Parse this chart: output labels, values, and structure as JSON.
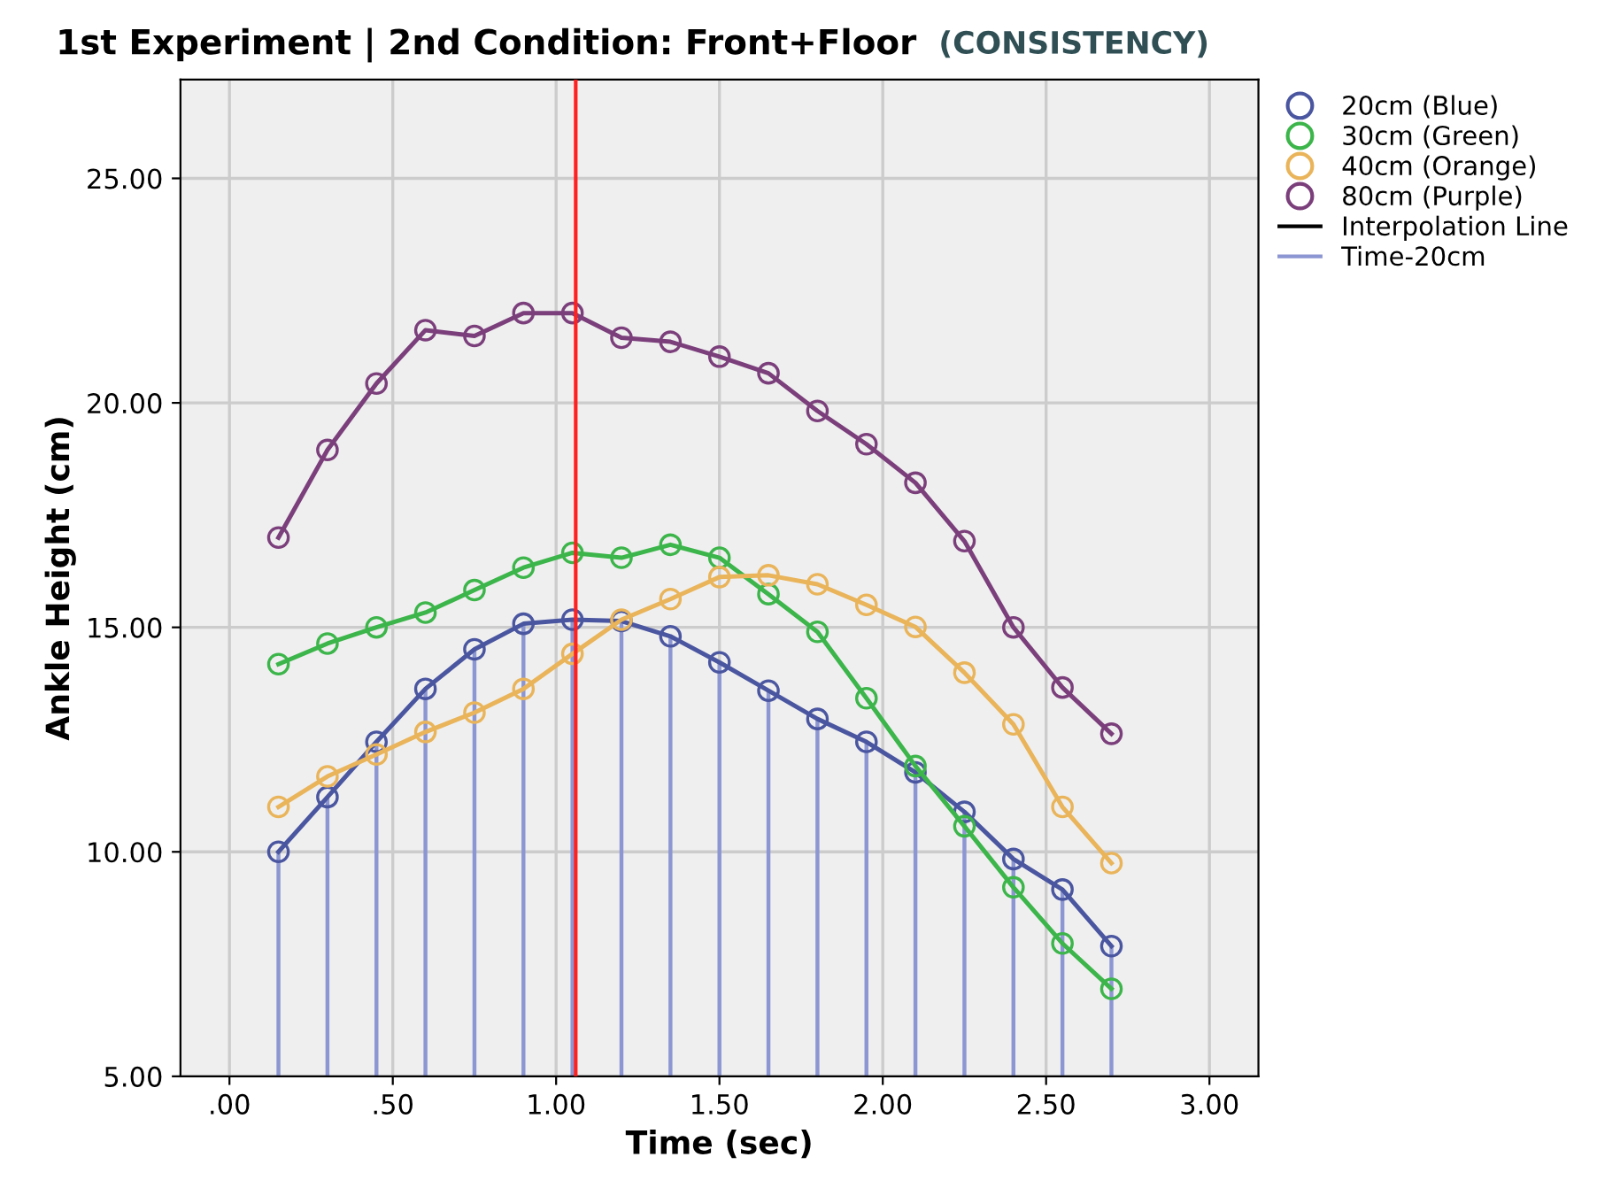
{
  "chart_data": {
    "type": "line",
    "title": "1st Experiment | 2nd Condition: Front+Floor",
    "subtitle": "(CONSISTENCY)",
    "xlabel": "Time (sec)",
    "ylabel": "Ankle Height (cm)",
    "x": [
      0.15,
      0.3,
      0.45,
      0.6,
      0.75,
      0.9,
      1.05,
      1.2,
      1.35,
      1.5,
      1.65,
      1.8,
      1.95,
      2.1,
      2.25,
      2.4,
      2.55,
      2.7
    ],
    "series": [
      {
        "name": "20cm (Blue)",
        "color": "#4a56a0",
        "values": [
          10.0,
          11.22,
          12.45,
          13.63,
          14.51,
          15.08,
          15.17,
          15.14,
          14.8,
          14.22,
          13.59,
          12.96,
          12.45,
          11.77,
          10.89,
          9.84,
          9.16,
          7.9
        ]
      },
      {
        "name": "Time-20cm",
        "type": "bar",
        "color": "#8c96d2",
        "values": [
          10.0,
          11.22,
          12.45,
          13.63,
          14.51,
          15.08,
          15.17,
          15.14,
          14.8,
          14.22,
          13.59,
          12.96,
          12.45,
          11.77,
          10.89,
          9.84,
          9.16,
          7.9
        ]
      },
      {
        "name": "30cm (Green)",
        "color": "#3cb54a",
        "values": [
          14.18,
          14.64,
          15.0,
          15.33,
          15.83,
          16.33,
          16.66,
          16.55,
          16.84,
          16.55,
          15.74,
          14.9,
          13.42,
          11.91,
          10.57,
          9.21,
          7.96,
          6.95
        ]
      },
      {
        "name": "40cm (Orange)",
        "color": "#e9b45a",
        "values": [
          11.0,
          11.68,
          12.17,
          12.67,
          13.1,
          13.63,
          14.41,
          15.17,
          15.63,
          16.12,
          16.16,
          15.96,
          15.5,
          15.01,
          13.99,
          12.84,
          11.0,
          9.75
        ]
      },
      {
        "name": "80cm (Purple)",
        "color": "#7b3f7b",
        "values": [
          17.0,
          18.95,
          20.43,
          21.62,
          21.49,
          22.0,
          22.0,
          21.45,
          21.36,
          21.03,
          20.66,
          19.82,
          19.08,
          18.22,
          16.92,
          15.0,
          13.66,
          12.63
        ]
      }
    ],
    "marker": "circle",
    "line_style": "solid",
    "xlim": [
      -0.15,
      3.15
    ],
    "xticks": [
      {
        "value": 0,
        "label": ".00"
      },
      {
        "value": 0.5,
        "label": ".50"
      },
      {
        "value": 1,
        "label": "1.00"
      },
      {
        "value": 1.5,
        "label": "1.50"
      },
      {
        "value": 2,
        "label": "2.00"
      },
      {
        "value": 2.5,
        "label": "2.50"
      },
      {
        "value": 3,
        "label": "3.00"
      }
    ],
    "ylim": [
      5,
      27.2
    ],
    "yticks": [
      {
        "value": 5,
        "label": "5.00"
      },
      {
        "value": 10,
        "label": "10.00"
      },
      {
        "value": 15,
        "label": "15.00"
      },
      {
        "value": 20,
        "label": "20.00"
      },
      {
        "value": 25,
        "label": "25.00"
      }
    ],
    "ref_lines": [
      {
        "axis": "x",
        "value": 1.06,
        "color": "#ff2020"
      }
    ],
    "annotations": [
      "Interpolation Line"
    ],
    "grid": true,
    "legend": "right"
  }
}
